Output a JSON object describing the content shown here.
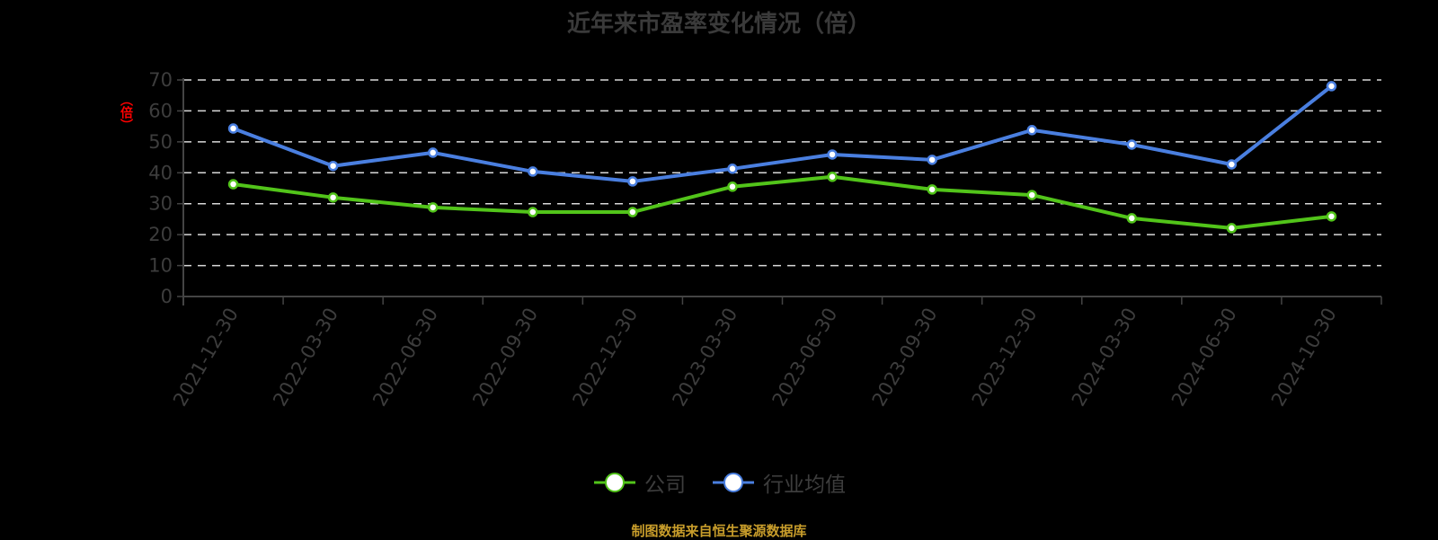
{
  "title": "近年来市盈率变化情况（倍）",
  "y_axis_label": "（倍）",
  "source": "制图数据来自恒生聚源数据库",
  "legend": [
    {
      "label": "公司",
      "color": "#52c41a"
    },
    {
      "label": "行业均值",
      "color": "#4a7fe0"
    }
  ],
  "chart_data": {
    "type": "line",
    "title": "近年来市盈率变化情况（倍）",
    "xlabel": "",
    "ylabel": "（倍）",
    "ylim": [
      0,
      70
    ],
    "yticks": [
      0,
      10,
      20,
      30,
      40,
      50,
      60,
      70
    ],
    "grid": true,
    "legend_position": "bottom",
    "categories": [
      "2021-12-30",
      "2022-03-30",
      "2022-06-30",
      "2022-09-30",
      "2022-12-30",
      "2023-03-30",
      "2023-06-30",
      "2023-09-30",
      "2023-12-30",
      "2024-03-30",
      "2024-06-30",
      "2024-10-30"
    ],
    "series": [
      {
        "name": "公司",
        "color": "#52c41a",
        "values": [
          36.3,
          32.0,
          28.8,
          27.3,
          27.3,
          35.5,
          38.7,
          34.6,
          32.8,
          25.3,
          22.1,
          25.9
        ]
      },
      {
        "name": "行业均值",
        "color": "#4a7fe0",
        "values": [
          54.3,
          42.2,
          46.5,
          40.4,
          37.2,
          41.3,
          45.9,
          44.2,
          53.8,
          49.1,
          42.7,
          68.0
        ]
      }
    ]
  }
}
